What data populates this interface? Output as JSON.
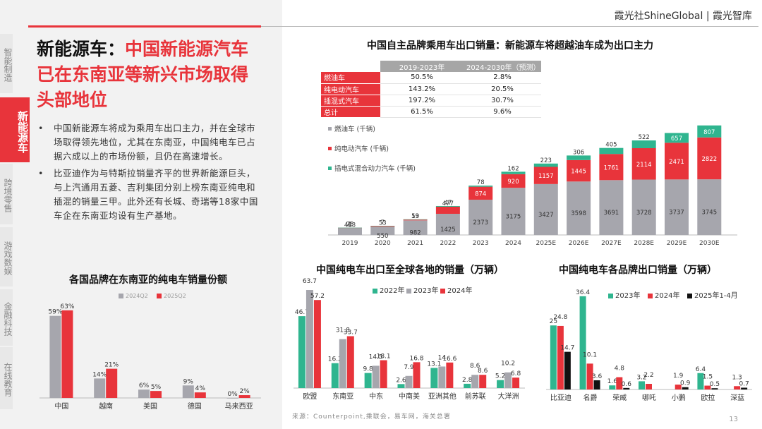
{
  "brand": "霞光社ShineGlobal | 霞光智库",
  "page_number": "13",
  "sidebar": {
    "items": [
      {
        "label": "智能制造",
        "active": false
      },
      {
        "label": "新能源车",
        "active": true
      },
      {
        "label": "跨境零售",
        "active": false
      },
      {
        "label": "游戏数娱",
        "active": false
      },
      {
        "label": "金融科技",
        "active": false
      },
      {
        "label": "在线教育",
        "active": false
      }
    ]
  },
  "headline": {
    "prefix": "新能源车：",
    "main": "中国新能源汽车已在东南亚等新兴市场取得头部地位"
  },
  "bullets": [
    "中国新能源车将成为乘用车出口主力，并在全球市场取得领先地位，尤其在东南亚，中国纯电车已占据六成以上的市场份额，且仍在高速增长。",
    "比亚迪作为与特斯拉销量齐平的世界新能源巨头，与上汽通用五菱、吉利集团分别上榜东南亚纯电和插混的销量三甲。此外还有长城、奇瑞等18家中国车企在东南亚均设有生产基地。"
  ],
  "source": "来源：Counterpoint,乘联会，易车网，海关总署",
  "colors": {
    "red": "#e8343b",
    "gray": "#a6a6ad",
    "teal": "#2fb58f",
    "black": "#111111",
    "sidebar_bg": "#e8e8e8"
  },
  "chart_data": [
    {
      "id": "export-forecast",
      "type": "bar",
      "stacked": true,
      "title": "中国自主品牌乘用车出口销量：新能源车将超越油车成为出口主力",
      "categories": [
        "2019",
        "2020",
        "2021",
        "2022",
        "2023",
        "2024",
        "2025E",
        "2026E",
        "2027E",
        "2028E",
        "2029E",
        "2030E"
      ],
      "series": [
        {
          "name": "燃油车 (千辆)",
          "color": "#a6a6ad",
          "values": [
            463,
            550,
            982,
            1425,
            2373,
            3175,
            3427,
            3598,
            3691,
            3728,
            3737,
            3745
          ]
        },
        {
          "name": "纯电动汽车 (千辆)",
          "color": "#e8343b",
          "values": [
            25,
            53,
            53,
            477,
            874,
            920,
            1157,
            1445,
            1761,
            2114,
            2471,
            2822
          ]
        },
        {
          "name": "插电式混合动力汽车 (千辆)",
          "color": "#2fb58f",
          "values": [
            1,
            7,
            19,
            47,
            78,
            162,
            223,
            306,
            405,
            522,
            657,
            807
          ]
        }
      ],
      "ylim": [
        0,
        7600
      ],
      "legend": "left",
      "table": {
        "headers": [
          "2019-2023年",
          "2024-2030年（预测）"
        ],
        "rows": [
          {
            "label": "燃油车",
            "values": [
              "50.5%",
              "2.8%"
            ]
          },
          {
            "label": "纯电动汽车",
            "values": [
              "143.2%",
              "20.5%"
            ]
          },
          {
            "label": "插混式汽车",
            "values": [
              "197.2%",
              "30.7%"
            ]
          },
          {
            "label": "总计",
            "values": [
              "61.5%",
              "9.6%"
            ]
          }
        ]
      }
    },
    {
      "id": "sea-share",
      "type": "bar",
      "title": "各国品牌在东南亚的纯电车销量份额",
      "categories": [
        "中国",
        "越南",
        "美国",
        "德国",
        "马来西亚"
      ],
      "series": [
        {
          "name": "2024Q2",
          "color": "#a6a6ad",
          "values": [
            59,
            14,
            6,
            9,
            0
          ],
          "labels": [
            "59%",
            "14%",
            "6%",
            "9%",
            "0%"
          ]
        },
        {
          "name": "2025Q2",
          "color": "#e8343b",
          "values": [
            63,
            21,
            5,
            4,
            2
          ],
          "labels": [
            "63%",
            "21%",
            "5%",
            "4%",
            "2%"
          ]
        }
      ],
      "ylim": [
        0,
        70
      ],
      "legend": "top"
    },
    {
      "id": "ev-destinations",
      "type": "bar",
      "title": "中国纯电车出口至全球各地的销量（万辆）",
      "categories": [
        "欧盟",
        "东南亚",
        "中东",
        "中南美",
        "亚洲其他",
        "前苏联",
        "大洋洲"
      ],
      "series": [
        {
          "name": "2022年",
          "color": "#2fb58f",
          "values": [
            46.7,
            16.2,
            9.8,
            2.6,
            13.1,
            2.8,
            5.2
          ]
        },
        {
          "name": "2023年",
          "color": "#a6a6ad",
          "values": [
            63.7,
            31.8,
            14.5,
            7.9,
            14.0,
            8.6,
            10.2
          ]
        },
        {
          "name": "2024年",
          "color": "#e8343b",
          "values": [
            57.2,
            33.7,
            18.1,
            16.8,
            16.6,
            8.6,
            6.8
          ]
        }
      ],
      "ylim": [
        0,
        66
      ],
      "legend": "top"
    },
    {
      "id": "ev-brands",
      "type": "bar",
      "title": "中国纯电车各品牌出口销量（万辆）",
      "categories": [
        "比亚迪",
        "名爵",
        "荣威",
        "哪吒",
        "小鹏",
        "欧拉",
        "深蓝"
      ],
      "series": [
        {
          "name": "2023年",
          "color": "#2fb58f",
          "values": [
            25,
            36.4,
            1.6,
            3.2,
            null,
            6.4,
            null
          ]
        },
        {
          "name": "2024年",
          "color": "#e8343b",
          "values": [
            24.8,
            10.1,
            4.8,
            2.2,
            1.9,
            1.5,
            1.3
          ]
        },
        {
          "name": "2025年1-4月",
          "color": "#111111",
          "values": [
            14.7,
            3.6,
            0.6,
            null,
            0.9,
            0.5,
            0.7
          ]
        }
      ],
      "ylim": [
        0,
        38
      ],
      "legend": "top"
    }
  ]
}
